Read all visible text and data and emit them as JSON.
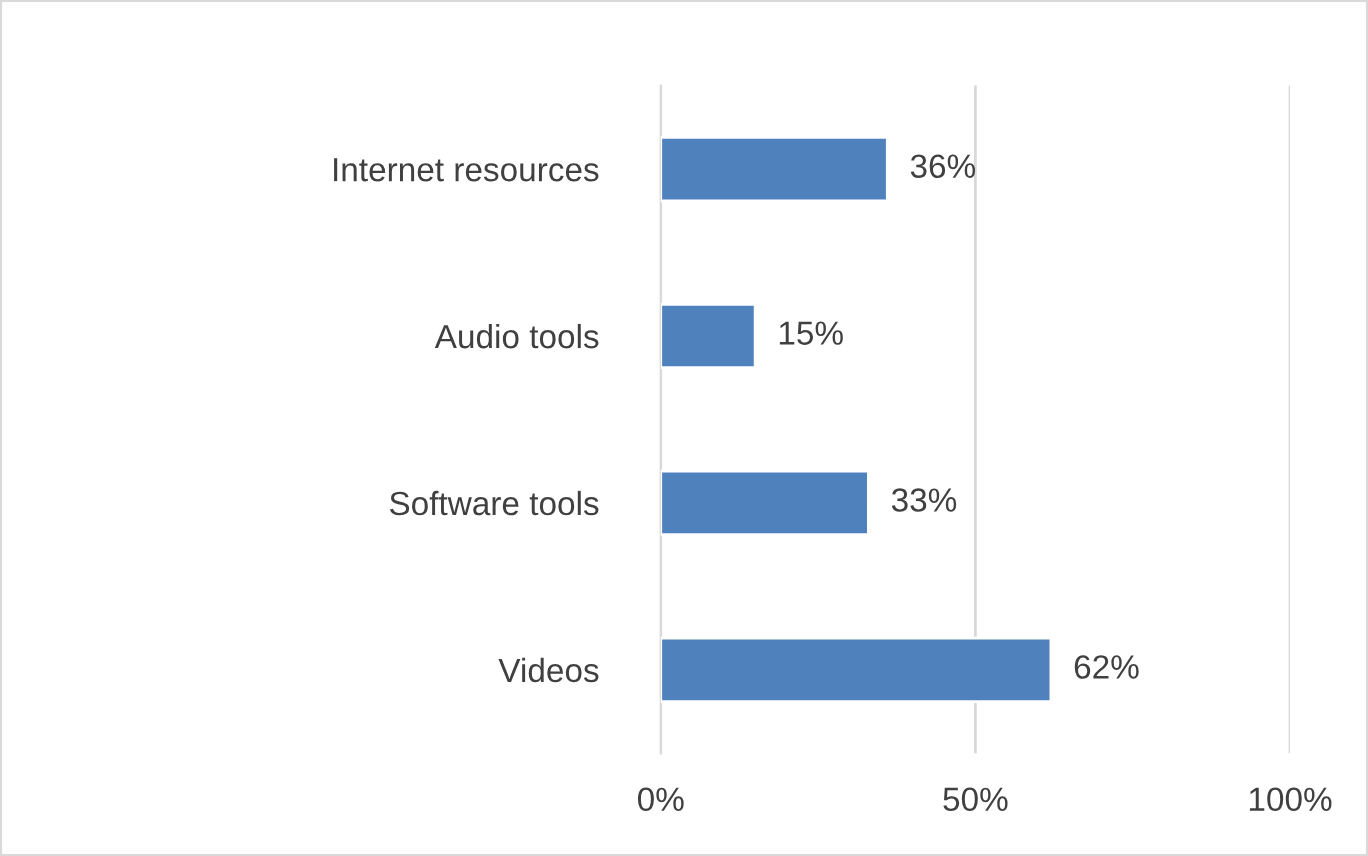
{
  "chart_data": {
    "type": "bar",
    "orientation": "horizontal",
    "categories": [
      "Internet resources",
      "Audio tools",
      "Software tools",
      "Videos"
    ],
    "values": [
      36,
      15,
      33,
      62
    ],
    "value_labels": [
      "36%",
      "15%",
      "33%",
      "62%"
    ],
    "color": "#4f81bd",
    "xlim": [
      0,
      100
    ],
    "xticks": [
      {
        "value": 0,
        "label": "0%"
      },
      {
        "value": 50,
        "label": "50%"
      },
      {
        "value": 100,
        "label": "100%"
      }
    ],
    "grid": "x",
    "legend": false
  }
}
